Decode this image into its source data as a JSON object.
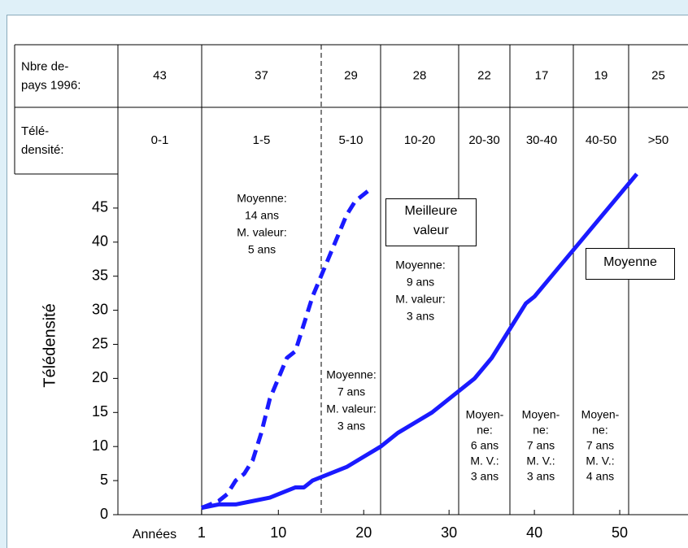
{
  "chart_data": {
    "type": "line",
    "table": {
      "rows": [
        {
          "header": [
            "Nbre de-",
            "pays 1996:"
          ],
          "cells": [
            "43",
            "37",
            "29",
            "28",
            "22",
            "17",
            "19",
            "25"
          ]
        },
        {
          "header": [
            "Télé-",
            "densité:"
          ],
          "cells": [
            "0-1",
            "1-5",
            "5-10",
            "10-20",
            "20-30",
            "30-40",
            "40-50",
            ">50"
          ]
        }
      ]
    },
    "y_label": "Télédensité",
    "x_label": "Années",
    "xlim": [
      -8.8,
      58
    ],
    "ylim": [
      0,
      50
    ],
    "xticks": [
      1,
      10,
      20,
      30,
      40,
      50
    ],
    "yticks": [
      0,
      5,
      10,
      15,
      20,
      25,
      30,
      35,
      40,
      45
    ],
    "series": [
      {
        "name": "Meilleure valeur",
        "color": "#1a1aff",
        "dashed": true,
        "x": [
          1,
          3,
          4,
          5,
          6,
          7,
          8,
          9,
          10,
          11,
          12,
          13,
          14,
          15,
          16,
          17,
          18,
          19,
          21
        ],
        "values": [
          1,
          2,
          3,
          5,
          6,
          8,
          12,
          17,
          20,
          23,
          24,
          28,
          32,
          35,
          38,
          41,
          44,
          46,
          48
        ]
      },
      {
        "name": "Moyenne",
        "color": "#1a1aff",
        "dashed": false,
        "x": [
          1,
          3,
          5,
          7,
          9,
          10,
          12,
          13,
          14,
          16,
          18,
          20,
          22,
          24,
          26,
          28,
          30,
          31,
          33,
          35,
          36,
          38,
          39,
          40,
          42,
          44,
          46,
          48,
          50,
          52
        ],
        "values": [
          1,
          1.5,
          1.5,
          2,
          2.5,
          3,
          4,
          4,
          5,
          6,
          7,
          8.5,
          10,
          12,
          13.5,
          15,
          17,
          18,
          20,
          23,
          25,
          29,
          31,
          32,
          35,
          38,
          41,
          44,
          47,
          50
        ]
      }
    ],
    "annotations": [
      [
        "Moyenne:",
        "14 ans",
        "M. valeur:",
        "5 ans"
      ],
      [
        "Moyenne:",
        "9 ans",
        "M. valeur:",
        "3 ans"
      ],
      [
        "Moyenne:",
        "7 ans",
        "M. valeur:",
        "3 ans"
      ],
      [
        "Moyen-",
        "ne:",
        "6 ans",
        "M. V.:",
        "3 ans"
      ],
      [
        "Moyen-",
        "ne:",
        "7 ans",
        "M. V.:",
        "3 ans"
      ],
      [
        "Moyen-",
        "ne:",
        "7 ans",
        "M. V.:",
        "4 ans"
      ]
    ]
  }
}
